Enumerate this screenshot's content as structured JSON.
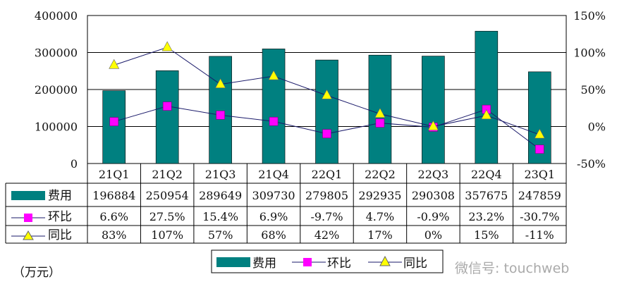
{
  "chart_data": {
    "type": "bar+line",
    "categories": [
      "21Q1",
      "21Q2",
      "21Q3",
      "21Q4",
      "22Q1",
      "22Q2",
      "22Q3",
      "22Q4",
      "23Q1"
    ],
    "series": [
      {
        "name": "费用",
        "type": "bar",
        "axis": "left",
        "color": "#008080",
        "values": [
          196884,
          250954,
          289649,
          309730,
          279805,
          292935,
          290308,
          357675,
          247859
        ],
        "labels": [
          "196884",
          "250954",
          "289649",
          "309730",
          "279805",
          "292935",
          "290308",
          "357675",
          "247859"
        ]
      },
      {
        "name": "环比",
        "type": "line",
        "axis": "right",
        "marker": "square",
        "color": "#ff00ff",
        "values": [
          6.6,
          27.5,
          15.4,
          6.9,
          -9.7,
          4.7,
          -0.9,
          23.2,
          -30.7
        ],
        "labels": [
          "6.6%",
          "27.5%",
          "15.4%",
          "6.9%",
          "-9.7%",
          "4.7%",
          "-0.9%",
          "23.2%",
          "-30.7%"
        ]
      },
      {
        "name": "同比",
        "type": "line",
        "axis": "right",
        "marker": "triangle",
        "color": "#ffff00",
        "values": [
          83,
          107,
          57,
          68,
          42,
          17,
          0,
          15,
          -11
        ],
        "labels": [
          "83%",
          "107%",
          "57%",
          "68%",
          "42%",
          "17%",
          "0%",
          "15%",
          "-11%"
        ]
      }
    ],
    "left_axis": {
      "ylim": [
        0,
        400000
      ],
      "ticks": [
        "0",
        "100000",
        "200000",
        "300000",
        "400000"
      ]
    },
    "right_axis": {
      "ylim": [
        -50,
        150
      ],
      "ticks": [
        "-50%",
        "0%",
        "50%",
        "100%",
        "150%"
      ]
    },
    "unit_label": "（万元）",
    "legend": {
      "placement": "bottom",
      "items": [
        "费用",
        "环比",
        "同比"
      ]
    },
    "grid": true,
    "watermark": "微信号: touchweb"
  }
}
